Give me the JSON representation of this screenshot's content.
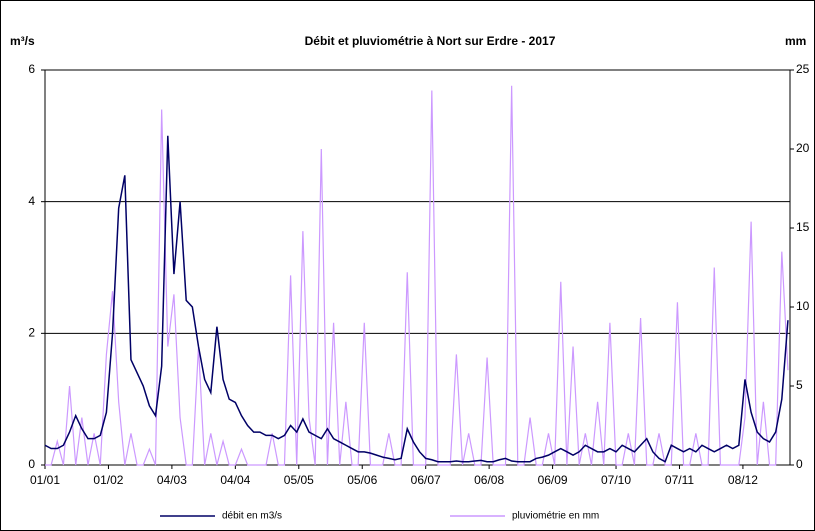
{
  "chart_data": {
    "type": "line",
    "title": "Débit et pluviométrie à Nort sur Erdre - 2017",
    "y_label": "m³/s",
    "y2_label": "mm",
    "x": [
      "01/01",
      "04/01",
      "07/01",
      "10/01",
      "13/01",
      "16/01",
      "19/01",
      "22/01",
      "25/01",
      "28/01",
      "31/01",
      "03/02",
      "06/02",
      "09/02",
      "12/02",
      "15/02",
      "18/02",
      "21/02",
      "24/02",
      "27/02",
      "02/03",
      "05/03",
      "08/03",
      "11/03",
      "14/03",
      "17/03",
      "20/03",
      "23/03",
      "26/03",
      "29/03",
      "01/04",
      "04/04",
      "07/04",
      "10/04",
      "13/04",
      "16/04",
      "19/04",
      "22/04",
      "25/04",
      "28/04",
      "01/05",
      "04/05",
      "07/05",
      "10/05",
      "13/05",
      "16/05",
      "19/05",
      "22/05",
      "25/05",
      "28/05",
      "31/05",
      "03/06",
      "06/06",
      "09/06",
      "12/06",
      "15/06",
      "18/06",
      "21/06",
      "24/06",
      "27/06",
      "30/06",
      "03/07",
      "06/07",
      "09/07",
      "12/07",
      "15/07",
      "18/07",
      "21/07",
      "24/07",
      "27/07",
      "30/07",
      "02/08",
      "05/08",
      "08/08",
      "11/08",
      "14/08",
      "17/08",
      "20/08",
      "23/08",
      "26/08",
      "29/08",
      "01/09",
      "04/09",
      "07/09",
      "10/09",
      "13/09",
      "16/09",
      "19/09",
      "22/09",
      "25/09",
      "28/09",
      "01/10",
      "04/10",
      "07/10",
      "10/10",
      "13/10",
      "16/10",
      "19/10",
      "22/10",
      "25/10",
      "28/10",
      "31/10",
      "03/11",
      "06/11",
      "09/11",
      "12/11",
      "15/11",
      "18/11",
      "21/11",
      "24/11",
      "27/11",
      "30/11",
      "03/12",
      "06/12",
      "09/12",
      "12/12",
      "15/12",
      "18/12",
      "21/12",
      "24/12",
      "27/12",
      "30/12"
    ],
    "series": [
      {
        "name": "débit en m3/s",
        "color": "#000066",
        "axis": "y",
        "values": [
          0.3,
          0.25,
          0.25,
          0.3,
          0.5,
          0.75,
          0.55,
          0.4,
          0.4,
          0.45,
          0.8,
          2.0,
          3.9,
          4.4,
          1.6,
          1.4,
          1.2,
          0.9,
          0.75,
          1.5,
          5.0,
          2.9,
          4.0,
          2.5,
          2.4,
          1.8,
          1.3,
          1.1,
          2.1,
          1.3,
          1.0,
          0.95,
          0.75,
          0.6,
          0.5,
          0.5,
          0.45,
          0.45,
          0.4,
          0.45,
          0.6,
          0.5,
          0.7,
          0.5,
          0.45,
          0.4,
          0.55,
          0.4,
          0.35,
          0.3,
          0.25,
          0.2,
          0.2,
          0.18,
          0.15,
          0.12,
          0.1,
          0.08,
          0.1,
          0.55,
          0.35,
          0.2,
          0.1,
          0.08,
          0.05,
          0.05,
          0.05,
          0.06,
          0.05,
          0.05,
          0.06,
          0.07,
          0.05,
          0.05,
          0.08,
          0.1,
          0.06,
          0.05,
          0.05,
          0.05,
          0.1,
          0.12,
          0.15,
          0.2,
          0.25,
          0.2,
          0.15,
          0.2,
          0.3,
          0.25,
          0.2,
          0.2,
          0.25,
          0.2,
          0.3,
          0.25,
          0.2,
          0.3,
          0.4,
          0.2,
          0.1,
          0.05,
          0.3,
          0.25,
          0.2,
          0.25,
          0.2,
          0.3,
          0.25,
          0.2,
          0.25,
          0.3,
          0.25,
          0.3,
          1.3,
          0.8,
          0.5,
          0.4,
          0.35,
          0.5,
          1.0,
          2.2
        ]
      },
      {
        "name": "pluviométrie en mm",
        "color": "#cc99ff",
        "axis": "y2",
        "values": [
          0,
          0,
          1.5,
          0,
          5,
          0,
          3,
          0,
          2,
          0,
          7,
          11,
          4,
          0,
          2,
          0,
          0,
          1,
          0,
          22.5,
          7.5,
          10.8,
          3,
          0,
          0,
          7.5,
          0,
          2,
          0,
          1.5,
          0,
          0,
          1,
          0,
          0,
          0,
          0,
          2,
          0,
          0,
          12,
          0,
          14.8,
          3,
          0,
          20,
          0,
          9,
          0,
          4,
          0,
          0,
          9,
          0,
          0,
          0,
          2,
          0,
          0,
          12.2,
          0,
          0,
          0,
          23.7,
          0,
          0,
          0,
          7,
          0,
          2,
          0,
          0,
          6.8,
          0,
          0,
          0,
          24,
          0,
          0,
          3,
          0,
          0,
          2,
          0,
          11.6,
          0,
          7.5,
          0,
          2,
          0,
          4,
          0,
          9,
          0,
          0,
          2,
          0,
          9.3,
          0,
          0,
          2,
          0,
          0,
          10.3,
          0,
          0,
          2,
          0,
          0,
          12.5,
          0,
          0,
          0,
          0,
          3,
          15.4,
          0,
          4,
          0,
          0,
          13.5,
          6
        ]
      }
    ],
    "xlim": [
      "01/01",
      "31/12"
    ],
    "xticks": [
      "01/01",
      "01/02",
      "04/03",
      "04/04",
      "05/05",
      "05/06",
      "06/07",
      "06/08",
      "06/09",
      "07/10",
      "07/11",
      "08/12"
    ],
    "ylim": [
      0,
      6
    ],
    "yticks": [
      0,
      2,
      4,
      6
    ],
    "y2lim": [
      0,
      25
    ],
    "y2ticks": [
      0,
      5,
      10,
      15,
      20,
      25
    ],
    "grid": true,
    "legend": "bottom"
  }
}
